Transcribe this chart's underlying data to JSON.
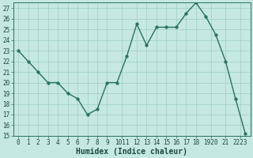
{
  "x": [
    0,
    1,
    2,
    3,
    4,
    5,
    6,
    7,
    8,
    9,
    10,
    11,
    12,
    13,
    14,
    15,
    16,
    17,
    18,
    19,
    20,
    21,
    22,
    23
  ],
  "y": [
    23,
    22,
    21,
    20,
    20,
    19,
    18.5,
    17,
    17.5,
    20,
    20,
    22.5,
    25.5,
    23.5,
    25.2,
    25.2,
    25.2,
    26.5,
    27.5,
    26.2,
    24.5,
    22,
    18.5,
    15.2
  ],
  "line_color": "#2a7060",
  "marker": "o",
  "marker_size": 2.5,
  "linewidth": 1.0,
  "bg_color": "#c5e8e0",
  "grid_color": "#9ecfca",
  "xlabel": "Humidex (Indice chaleur)",
  "xlim": [
    -0.5,
    23.5
  ],
  "ylim": [
    15,
    27.5
  ],
  "yticks": [
    15,
    16,
    17,
    18,
    19,
    20,
    21,
    22,
    23,
    24,
    25,
    26,
    27
  ],
  "xtick_positions": [
    0,
    1,
    2,
    3,
    4,
    5,
    6,
    7,
    8,
    9,
    10.5,
    12,
    13,
    14,
    15,
    16,
    17,
    18,
    19.5,
    21,
    22.5
  ],
  "xtick_labels": [
    "0",
    "1",
    "2",
    "3",
    "4",
    "5",
    "6",
    "7",
    "8",
    "9",
    "1011",
    "12",
    "13",
    "14",
    "15",
    "16",
    "17",
    "18",
    "1920",
    "21",
    "2223"
  ],
  "xlabel_fontsize": 7,
  "tick_fontsize": 5.5,
  "fig_width": 3.2,
  "fig_height": 2.0,
  "dpi": 100
}
